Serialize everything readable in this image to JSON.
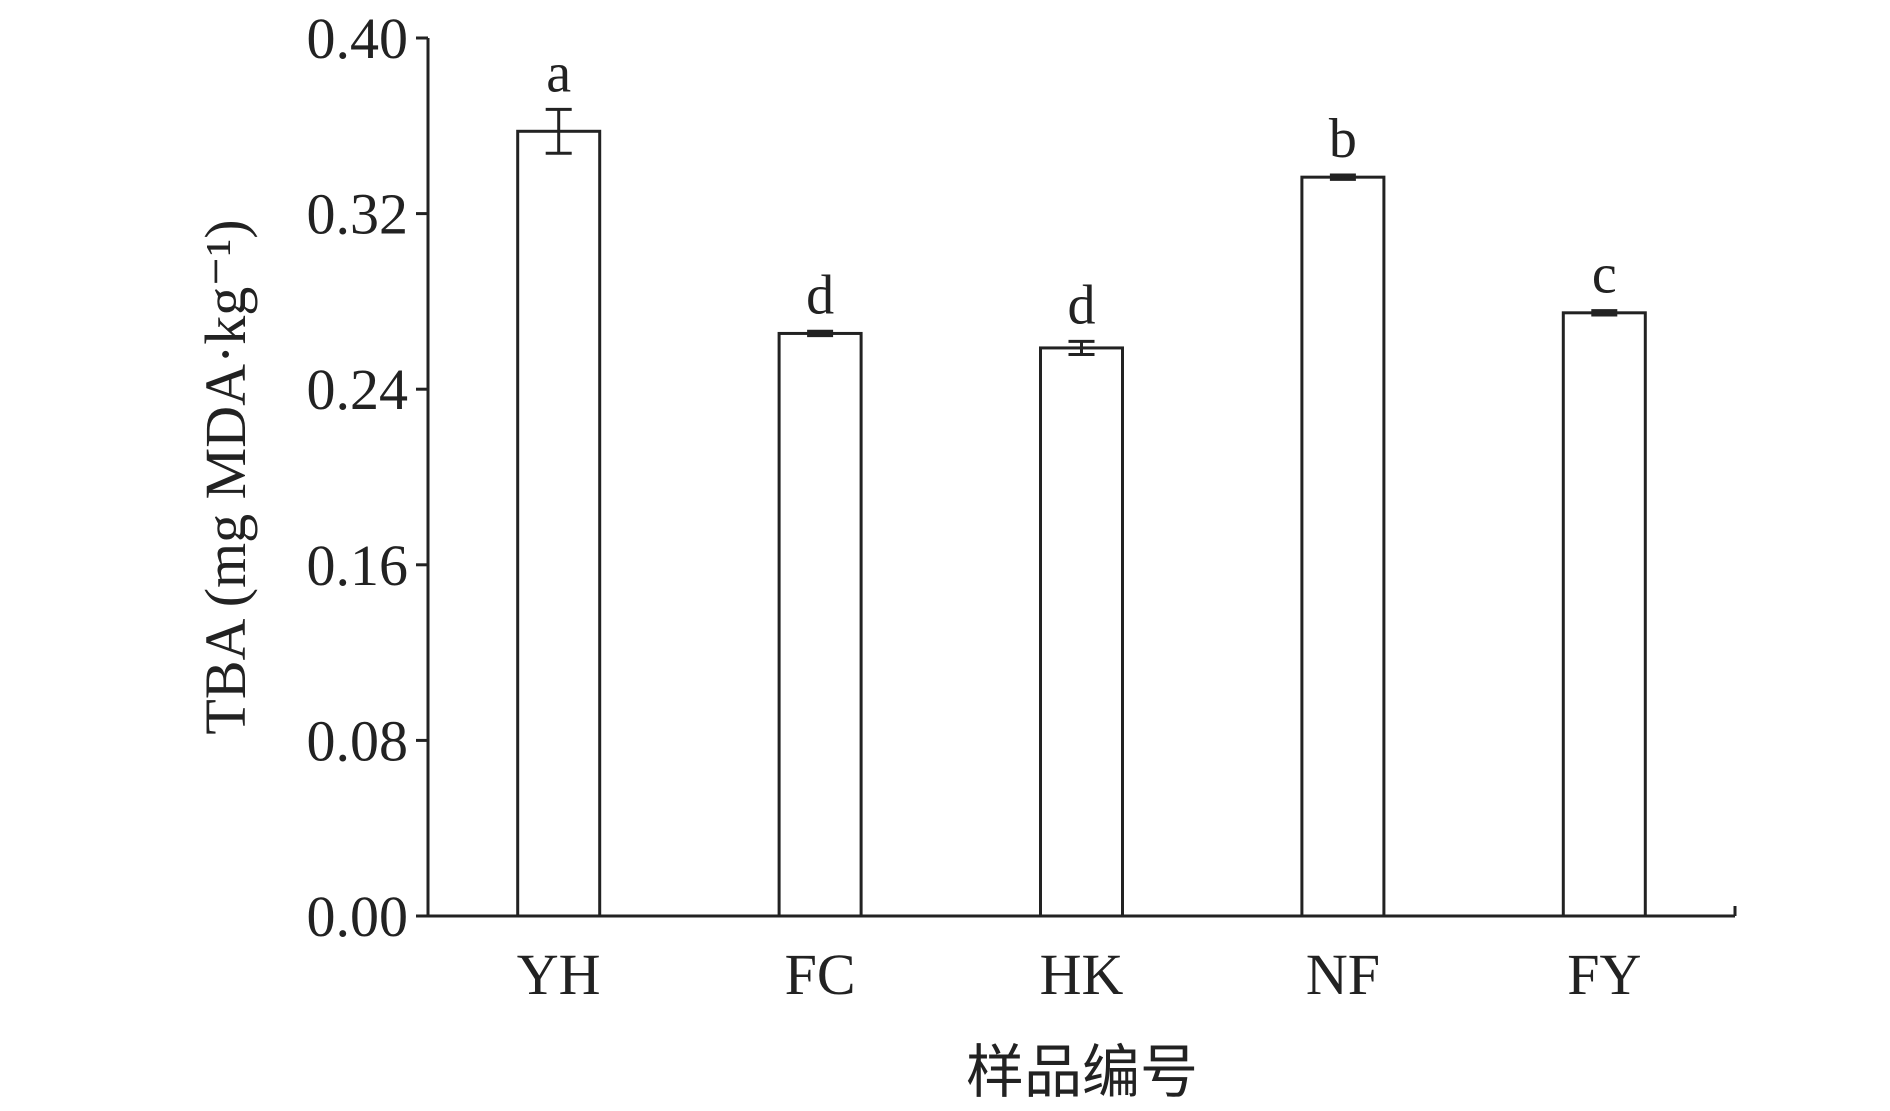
{
  "chart_data": {
    "type": "bar",
    "x_label": "样品编号",
    "y_label": "TBA (mg MDA·kg⁻¹)",
    "categories": [
      "YH",
      "FC",
      "HK",
      "NF",
      "FY"
    ],
    "values": [
      0.3575,
      0.2654,
      0.2588,
      0.3366,
      0.2748
    ],
    "errors": [
      0.01,
      0.001,
      0.003,
      0.001,
      0.001
    ],
    "letters": [
      "a",
      "d",
      "d",
      "b",
      "c"
    ],
    "color": "#ffffff",
    "edge_color": "#222222",
    "ylim": [
      0,
      0.4
    ],
    "yticks": [
      {
        "value": 0,
        "label": "0.00"
      },
      {
        "value": 0.08,
        "label": "0.08"
      },
      {
        "value": 0.16,
        "label": "0.16"
      },
      {
        "value": 0.24,
        "label": "0.24"
      },
      {
        "value": 0.32,
        "label": "0.32"
      },
      {
        "value": 0.4,
        "label": "0.40"
      }
    ],
    "grid": false
  }
}
